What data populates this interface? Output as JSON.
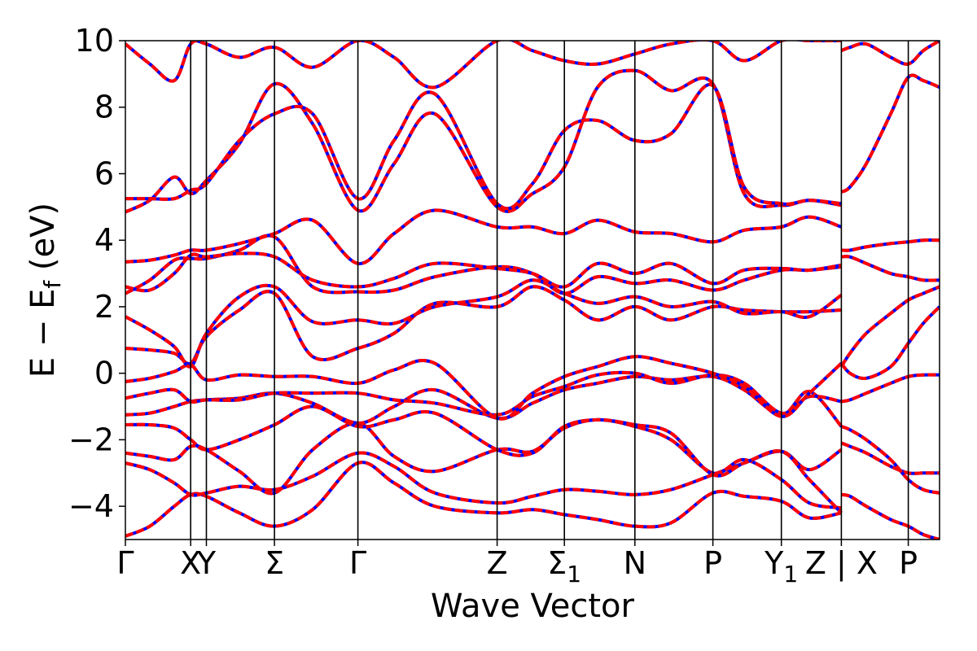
{
  "chart_data": {
    "type": "line",
    "title": "",
    "xlabel": "Wave Vector",
    "ylabel": "E − E",
    "ylabel_sub": "f",
    "ylabel_unit": " (eV)",
    "ylim": [
      -5,
      10
    ],
    "yticks": [
      -4,
      -2,
      0,
      2,
      4,
      6,
      8,
      10
    ],
    "ytick_labels": [
      "−4",
      "−2",
      "0",
      "2",
      "4",
      "6",
      "8",
      "10"
    ],
    "grid": false,
    "kpath": [
      {
        "label": "Γ",
        "pos": 0.0
      },
      {
        "label": "X",
        "pos": 0.0802
      },
      {
        "label": "Y",
        "pos": 0.0995
      },
      {
        "label": "Σ",
        "pos": 0.1831
      },
      {
        "label": "Γ",
        "pos": 0.2856
      },
      {
        "label": "Z",
        "pos": 0.4566
      },
      {
        "label": "Σ",
        "sub": "1",
        "pos": 0.5392
      },
      {
        "label": "N",
        "pos": 0.6258
      },
      {
        "label": "P",
        "pos": 0.7216
      },
      {
        "label": "Y",
        "sub": "1",
        "pos": 0.8057
      },
      {
        "label": "Z | X",
        "pos": 0.8794
      },
      {
        "label": "P",
        "pos": 0.9616
      }
    ],
    "series_colors": {
      "primary": "#ff0000",
      "secondary": "#0000ff"
    },
    "series": [
      {
        "x": [
          0.0,
          0.03,
          0.06,
          0.0802,
          0.0995,
          0.14,
          0.1831,
          0.23,
          0.2856,
          0.33,
          0.38,
          0.4566,
          0.5,
          0.5392,
          0.58,
          0.6258,
          0.67,
          0.7216,
          0.76,
          0.8057,
          0.84,
          0.8794
        ],
        "y": [
          -4.9,
          -4.6,
          -4.0,
          -3.65,
          -3.7,
          -4.2,
          -4.6,
          -4.1,
          -2.7,
          -3.3,
          -4.0,
          -4.2,
          -4.1,
          -4.25,
          -4.4,
          -4.6,
          -4.5,
          -3.6,
          -3.7,
          -3.85,
          -4.35,
          -4.2
        ]
      },
      {
        "x": [
          0.0,
          0.03,
          0.06,
          0.0802,
          0.0995,
          0.14,
          0.1831,
          0.23,
          0.2856,
          0.33,
          0.38,
          0.4566,
          0.5,
          0.5392,
          0.58,
          0.6258,
          0.67,
          0.7216,
          0.76,
          0.8057,
          0.84,
          0.8794
        ],
        "y": [
          -2.7,
          -2.9,
          -3.3,
          -3.65,
          -3.6,
          -3.4,
          -3.5,
          -3.1,
          -2.4,
          -2.8,
          -3.6,
          -3.9,
          -3.7,
          -3.5,
          -3.55,
          -3.65,
          -3.5,
          -3.05,
          -2.7,
          -2.35,
          -2.9,
          -2.3
        ]
      },
      {
        "x": [
          0.0,
          0.03,
          0.06,
          0.0802,
          0.0995,
          0.14,
          0.1831,
          0.23,
          0.2856,
          0.33,
          0.38,
          0.4566,
          0.5,
          0.5392,
          0.58,
          0.6258,
          0.67,
          0.7216,
          0.76,
          0.8057,
          0.84,
          0.8794
        ],
        "y": [
          -2.4,
          -2.5,
          -2.6,
          -2.2,
          -2.3,
          -2.95,
          -3.6,
          -2.3,
          -1.5,
          -2.5,
          -2.95,
          -2.3,
          -2.35,
          -1.65,
          -1.4,
          -1.6,
          -2.0,
          -3.0,
          -2.6,
          -3.2,
          -3.9,
          -4.05
        ]
      },
      {
        "x": [
          0.0,
          0.03,
          0.06,
          0.0802,
          0.0995,
          0.14,
          0.1831,
          0.23,
          0.2856,
          0.33,
          0.38,
          0.4566,
          0.5,
          0.5392,
          0.58,
          0.6258,
          0.67,
          0.7216,
          0.76,
          0.8057,
          0.84,
          0.8794
        ],
        "y": [
          -1.55,
          -1.55,
          -1.65,
          -2.0,
          -2.3,
          -2.0,
          -1.55,
          -1.0,
          -1.6,
          -1.4,
          -1.2,
          -2.3,
          -2.4,
          -1.6,
          -1.4,
          -1.55,
          -1.8,
          -3.05,
          -2.7,
          -2.35,
          -3.2,
          -4.2
        ]
      },
      {
        "x": [
          0.0,
          0.03,
          0.06,
          0.0802,
          0.0995,
          0.14,
          0.1831,
          0.23,
          0.2856,
          0.33,
          0.38,
          0.4566,
          0.5,
          0.5392,
          0.58,
          0.6258,
          0.67,
          0.7216,
          0.76,
          0.8057,
          0.84,
          0.8794
        ],
        "y": [
          -1.25,
          -1.2,
          -1.0,
          -0.85,
          -0.8,
          -0.75,
          -0.6,
          -0.9,
          -1.5,
          -1.0,
          -0.5,
          -1.35,
          -0.9,
          -0.5,
          -0.3,
          -0.1,
          -0.2,
          -0.1,
          -0.5,
          -1.25,
          -0.55,
          -1.6
        ]
      },
      {
        "x": [
          0.0,
          0.03,
          0.06,
          0.0802,
          0.0995,
          0.14,
          0.1831,
          0.23,
          0.2856,
          0.33,
          0.38,
          0.4566,
          0.5,
          0.5392,
          0.58,
          0.6258,
          0.67,
          0.7216,
          0.76,
          0.8057,
          0.84,
          0.8794
        ],
        "y": [
          -0.75,
          -0.6,
          -0.5,
          -0.85,
          -0.8,
          -0.8,
          -0.6,
          -0.6,
          -0.6,
          -0.8,
          -0.9,
          -1.25,
          -0.7,
          -0.4,
          -0.05,
          0.0,
          -0.3,
          -0.05,
          -0.3,
          -1.2,
          -0.7,
          -0.85
        ]
      },
      {
        "x": [
          0.0,
          0.03,
          0.06,
          0.0802,
          0.0995,
          0.14,
          0.1831,
          0.23,
          0.2856,
          0.33,
          0.38,
          0.4566,
          0.5,
          0.5392,
          0.58,
          0.6258,
          0.67,
          0.7216,
          0.76,
          0.8057,
          0.84,
          0.8794
        ],
        "y": [
          -0.25,
          -0.15,
          0.05,
          0.25,
          -0.2,
          -0.05,
          -0.1,
          -0.1,
          -0.3,
          0.1,
          0.3,
          -1.35,
          -0.6,
          -0.1,
          0.2,
          0.5,
          0.3,
          0.0,
          -0.4,
          -1.3,
          -0.6,
          0.3
        ]
      },
      {
        "x": [
          0.0,
          0.03,
          0.06,
          0.0802,
          0.0995,
          0.14,
          0.1831,
          0.23,
          0.2856,
          0.33,
          0.38,
          0.4566,
          0.5,
          0.5392,
          0.58,
          0.6258,
          0.67,
          0.7216,
          0.76,
          0.8057,
          0.84,
          0.8794
        ],
        "y": [
          0.75,
          0.7,
          0.6,
          0.3,
          1.1,
          1.9,
          2.4,
          0.5,
          0.75,
          1.2,
          2.1,
          2.0,
          2.6,
          2.2,
          1.6,
          2.0,
          1.6,
          2.0,
          1.9,
          1.85,
          1.85,
          1.9
        ]
      },
      {
        "x": [
          0.0,
          0.03,
          0.06,
          0.0802,
          0.0995,
          0.14,
          0.1831,
          0.23,
          0.2856,
          0.33,
          0.38,
          0.4566,
          0.5,
          0.5392,
          0.58,
          0.6258,
          0.67,
          0.7216,
          0.76,
          0.8057,
          0.84,
          0.8794
        ],
        "y": [
          1.7,
          1.3,
          0.8,
          0.2,
          1.2,
          2.3,
          2.6,
          1.55,
          1.6,
          1.5,
          2.0,
          2.3,
          2.8,
          2.4,
          2.1,
          2.3,
          2.0,
          2.15,
          1.8,
          1.85,
          1.7,
          2.35
        ]
      },
      {
        "x": [
          0.0,
          0.03,
          0.06,
          0.0802,
          0.0995,
          0.14,
          0.1831,
          0.23,
          0.2856,
          0.33,
          0.38,
          0.4566,
          0.5,
          0.5392,
          0.58,
          0.6258,
          0.67,
          0.7216,
          0.76,
          0.8057,
          0.84,
          0.8794
        ],
        "y": [
          2.4,
          2.8,
          3.4,
          3.45,
          3.45,
          3.7,
          4.1,
          2.6,
          2.45,
          2.5,
          2.9,
          3.2,
          3.0,
          2.4,
          2.9,
          2.7,
          2.8,
          2.5,
          2.8,
          3.1,
          3.1,
          3.2
        ]
      },
      {
        "x": [
          0.0,
          0.03,
          0.06,
          0.0802,
          0.0995,
          0.14,
          0.1831,
          0.23,
          0.2856,
          0.33,
          0.38,
          0.4566,
          0.5,
          0.5392,
          0.58,
          0.6258,
          0.67,
          0.7216,
          0.76,
          0.8057,
          0.84,
          0.8794
        ],
        "y": [
          2.6,
          2.5,
          3.0,
          3.55,
          3.5,
          3.6,
          3.5,
          2.8,
          2.6,
          2.85,
          3.3,
          3.15,
          3.0,
          2.6,
          3.3,
          3.0,
          3.3,
          2.7,
          3.1,
          3.15,
          3.1,
          3.25
        ]
      },
      {
        "x": [
          0.0,
          0.03,
          0.06,
          0.0802,
          0.0995,
          0.14,
          0.1831,
          0.23,
          0.2856,
          0.33,
          0.38,
          0.4566,
          0.5,
          0.5392,
          0.58,
          0.6258,
          0.67,
          0.7216,
          0.76,
          0.8057,
          0.84,
          0.8794
        ],
        "y": [
          3.35,
          3.4,
          3.55,
          3.7,
          3.7,
          3.9,
          4.2,
          4.6,
          3.3,
          4.2,
          4.9,
          4.4,
          4.4,
          4.2,
          4.6,
          4.25,
          4.2,
          3.95,
          4.3,
          4.4,
          4.7,
          4.4
        ]
      },
      {
        "x": [
          0.0,
          0.03,
          0.06,
          0.0802,
          0.0995,
          0.14,
          0.1831,
          0.23,
          0.2856,
          0.33,
          0.38,
          0.4566,
          0.5,
          0.5392,
          0.58,
          0.6258,
          0.67,
          0.7216,
          0.76,
          0.8057,
          0.84,
          0.8794
        ],
        "y": [
          4.85,
          5.2,
          5.9,
          5.4,
          5.8,
          6.9,
          8.7,
          7.5,
          4.9,
          6.3,
          7.8,
          5.0,
          5.4,
          6.2,
          8.6,
          9.1,
          8.5,
          8.7,
          5.4,
          5.05,
          5.2,
          5.05
        ]
      },
      {
        "x": [
          0.0,
          0.03,
          0.06,
          0.0802,
          0.0995,
          0.14,
          0.1831,
          0.23,
          0.2856,
          0.33,
          0.38,
          0.4566,
          0.5,
          0.5392,
          0.58,
          0.6258,
          0.67,
          0.7216,
          0.76,
          0.8057,
          0.84,
          0.8794
        ],
        "y": [
          5.25,
          5.25,
          5.25,
          5.5,
          5.7,
          7.0,
          7.8,
          7.8,
          5.25,
          7.0,
          8.4,
          5.1,
          5.7,
          7.3,
          7.6,
          7.0,
          7.2,
          8.65,
          5.6,
          5.1,
          5.2,
          5.1
        ]
      },
      {
        "x": [
          0.0,
          0.03,
          0.06,
          0.0802,
          0.0995,
          0.14,
          0.1831,
          0.23,
          0.2856,
          0.33,
          0.38,
          0.4566,
          0.5,
          0.5392,
          0.58,
          0.6258,
          0.67,
          0.7216,
          0.76,
          0.8057,
          0.84,
          0.8794
        ],
        "y": [
          9.9,
          9.3,
          8.8,
          9.9,
          9.9,
          9.5,
          9.8,
          9.2,
          10.0,
          9.5,
          8.6,
          10.0,
          9.7,
          9.4,
          9.3,
          9.6,
          9.9,
          10.0,
          9.4,
          10.0,
          10.0,
          10.0
        ]
      },
      {
        "x": [
          0.8794,
          0.89,
          0.91,
          0.94,
          0.9616,
          0.98,
          1.0
        ],
        "y": [
          -3.65,
          -3.7,
          -4.0,
          -4.4,
          -4.6,
          -4.85,
          -5.0
        ]
      },
      {
        "x": [
          0.8794,
          0.89,
          0.91,
          0.94,
          0.9616,
          0.98,
          1.0
        ],
        "y": [
          -2.1,
          -2.2,
          -2.4,
          -2.8,
          -3.0,
          -3.0,
          -3.0
        ]
      },
      {
        "x": [
          0.8794,
          0.89,
          0.91,
          0.94,
          0.9616,
          0.98,
          1.0
        ],
        "y": [
          -1.6,
          -1.7,
          -2.0,
          -2.6,
          -3.2,
          -3.5,
          -3.6
        ]
      },
      {
        "x": [
          0.8794,
          0.89,
          0.91,
          0.94,
          0.9616,
          0.98,
          1.0
        ],
        "y": [
          -0.85,
          -0.8,
          -0.6,
          -0.3,
          -0.1,
          -0.05,
          -0.05
        ]
      },
      {
        "x": [
          0.8794,
          0.89,
          0.91,
          0.94,
          0.9616,
          0.98,
          1.0
        ],
        "y": [
          0.3,
          0.0,
          -0.15,
          0.2,
          0.9,
          1.5,
          2.0
        ]
      },
      {
        "x": [
          0.8794,
          0.89,
          0.91,
          0.94,
          0.9616,
          0.98,
          1.0
        ],
        "y": [
          0.2,
          0.6,
          1.2,
          1.8,
          2.2,
          2.4,
          2.6
        ]
      },
      {
        "x": [
          0.8794,
          0.89,
          0.91,
          0.94,
          0.9616,
          0.98,
          1.0
        ],
        "y": [
          3.5,
          3.5,
          3.3,
          3.0,
          2.9,
          2.8,
          2.8
        ]
      },
      {
        "x": [
          0.8794,
          0.89,
          0.91,
          0.94,
          0.9616,
          0.98,
          1.0
        ],
        "y": [
          3.7,
          3.7,
          3.8,
          3.9,
          3.95,
          4.0,
          4.0
        ]
      },
      {
        "x": [
          0.8794,
          0.89,
          0.91,
          0.94,
          0.9616,
          0.98,
          1.0
        ],
        "y": [
          5.45,
          5.6,
          6.3,
          7.8,
          8.9,
          8.8,
          8.6
        ]
      },
      {
        "x": [
          0.8794,
          0.89,
          0.91,
          0.94,
          0.9616,
          0.98,
          1.0
        ],
        "y": [
          9.7,
          9.8,
          9.9,
          9.5,
          9.3,
          9.7,
          10.0
        ]
      }
    ]
  }
}
